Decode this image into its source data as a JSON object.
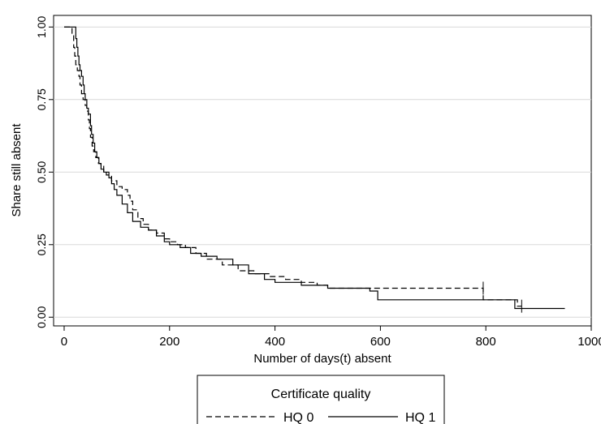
{
  "chart_data": {
    "type": "line",
    "title": "",
    "xlabel": "Number of days(t) absent",
    "ylabel": "Share still absent",
    "xlim": [
      -20,
      1000
    ],
    "ylim": [
      -0.03,
      1.04
    ],
    "xticks": [
      0,
      200,
      400,
      600,
      800,
      1000
    ],
    "xtick_labels": [
      "0",
      "200",
      "400",
      "600",
      "800",
      "1000"
    ],
    "yticks": [
      0,
      0.25,
      0.5,
      0.75,
      1
    ],
    "ytick_labels": [
      "0.00",
      "0.25",
      "0.50",
      "0.75",
      "1.00"
    ],
    "grid": "horizontal",
    "legend": {
      "title": "Certificate quality",
      "placement": "bottom-center"
    },
    "series": [
      {
        "name": "HQ 0",
        "style": "dashed",
        "censor_marks": [
          [
            795,
            0.1
          ],
          [
            868,
            0.038
          ]
        ],
        "points": [
          [
            0,
            1
          ],
          [
            10,
            1
          ],
          [
            15,
            0.97
          ],
          [
            18,
            0.93
          ],
          [
            20,
            0.9
          ],
          [
            22,
            0.87
          ],
          [
            25,
            0.85
          ],
          [
            28,
            0.83
          ],
          [
            30,
            0.8
          ],
          [
            33,
            0.77
          ],
          [
            36,
            0.75
          ],
          [
            40,
            0.73
          ],
          [
            43,
            0.71
          ],
          [
            46,
            0.68
          ],
          [
            48,
            0.65
          ],
          [
            50,
            0.62
          ],
          [
            53,
            0.59
          ],
          [
            56,
            0.57
          ],
          [
            60,
            0.55
          ],
          [
            65,
            0.53
          ],
          [
            70,
            0.52
          ],
          [
            75,
            0.5
          ],
          [
            80,
            0.49
          ],
          [
            90,
            0.47
          ],
          [
            100,
            0.45
          ],
          [
            110,
            0.44
          ],
          [
            120,
            0.42
          ],
          [
            125,
            0.4
          ],
          [
            130,
            0.37
          ],
          [
            140,
            0.34
          ],
          [
            150,
            0.32
          ],
          [
            160,
            0.3
          ],
          [
            175,
            0.29
          ],
          [
            190,
            0.27
          ],
          [
            200,
            0.26
          ],
          [
            215,
            0.25
          ],
          [
            230,
            0.24
          ],
          [
            250,
            0.22
          ],
          [
            270,
            0.2
          ],
          [
            300,
            0.18
          ],
          [
            330,
            0.16
          ],
          [
            360,
            0.15
          ],
          [
            390,
            0.14
          ],
          [
            420,
            0.13
          ],
          [
            450,
            0.12
          ],
          [
            480,
            0.11
          ],
          [
            500,
            0.1
          ],
          [
            795,
            0.1
          ],
          [
            795,
            0.06
          ],
          [
            860,
            0.06
          ],
          [
            860,
            0.038
          ],
          [
            868,
            0.038
          ]
        ]
      },
      {
        "name": "HQ 1",
        "style": "solid",
        "censor_marks": [],
        "points": [
          [
            0,
            1
          ],
          [
            20,
            1
          ],
          [
            22,
            0.96
          ],
          [
            24,
            0.93
          ],
          [
            26,
            0.9
          ],
          [
            28,
            0.87
          ],
          [
            30,
            0.85
          ],
          [
            33,
            0.83
          ],
          [
            36,
            0.8
          ],
          [
            38,
            0.77
          ],
          [
            40,
            0.75
          ],
          [
            43,
            0.72
          ],
          [
            46,
            0.7
          ],
          [
            50,
            0.66
          ],
          [
            52,
            0.63
          ],
          [
            55,
            0.6
          ],
          [
            58,
            0.57
          ],
          [
            62,
            0.55
          ],
          [
            66,
            0.53
          ],
          [
            70,
            0.51
          ],
          [
            75,
            0.5
          ],
          [
            85,
            0.48
          ],
          [
            90,
            0.46
          ],
          [
            95,
            0.44
          ],
          [
            100,
            0.42
          ],
          [
            110,
            0.39
          ],
          [
            120,
            0.36
          ],
          [
            130,
            0.33
          ],
          [
            145,
            0.31
          ],
          [
            160,
            0.3
          ],
          [
            175,
            0.28
          ],
          [
            190,
            0.26
          ],
          [
            200,
            0.25
          ],
          [
            220,
            0.24
          ],
          [
            240,
            0.22
          ],
          [
            260,
            0.21
          ],
          [
            290,
            0.2
          ],
          [
            320,
            0.18
          ],
          [
            350,
            0.15
          ],
          [
            380,
            0.13
          ],
          [
            400,
            0.12
          ],
          [
            450,
            0.11
          ],
          [
            500,
            0.1
          ],
          [
            580,
            0.09
          ],
          [
            590,
            0.09
          ],
          [
            595,
            0.06
          ],
          [
            850,
            0.06
          ],
          [
            855,
            0.03
          ],
          [
            950,
            0.03
          ]
        ]
      }
    ]
  }
}
